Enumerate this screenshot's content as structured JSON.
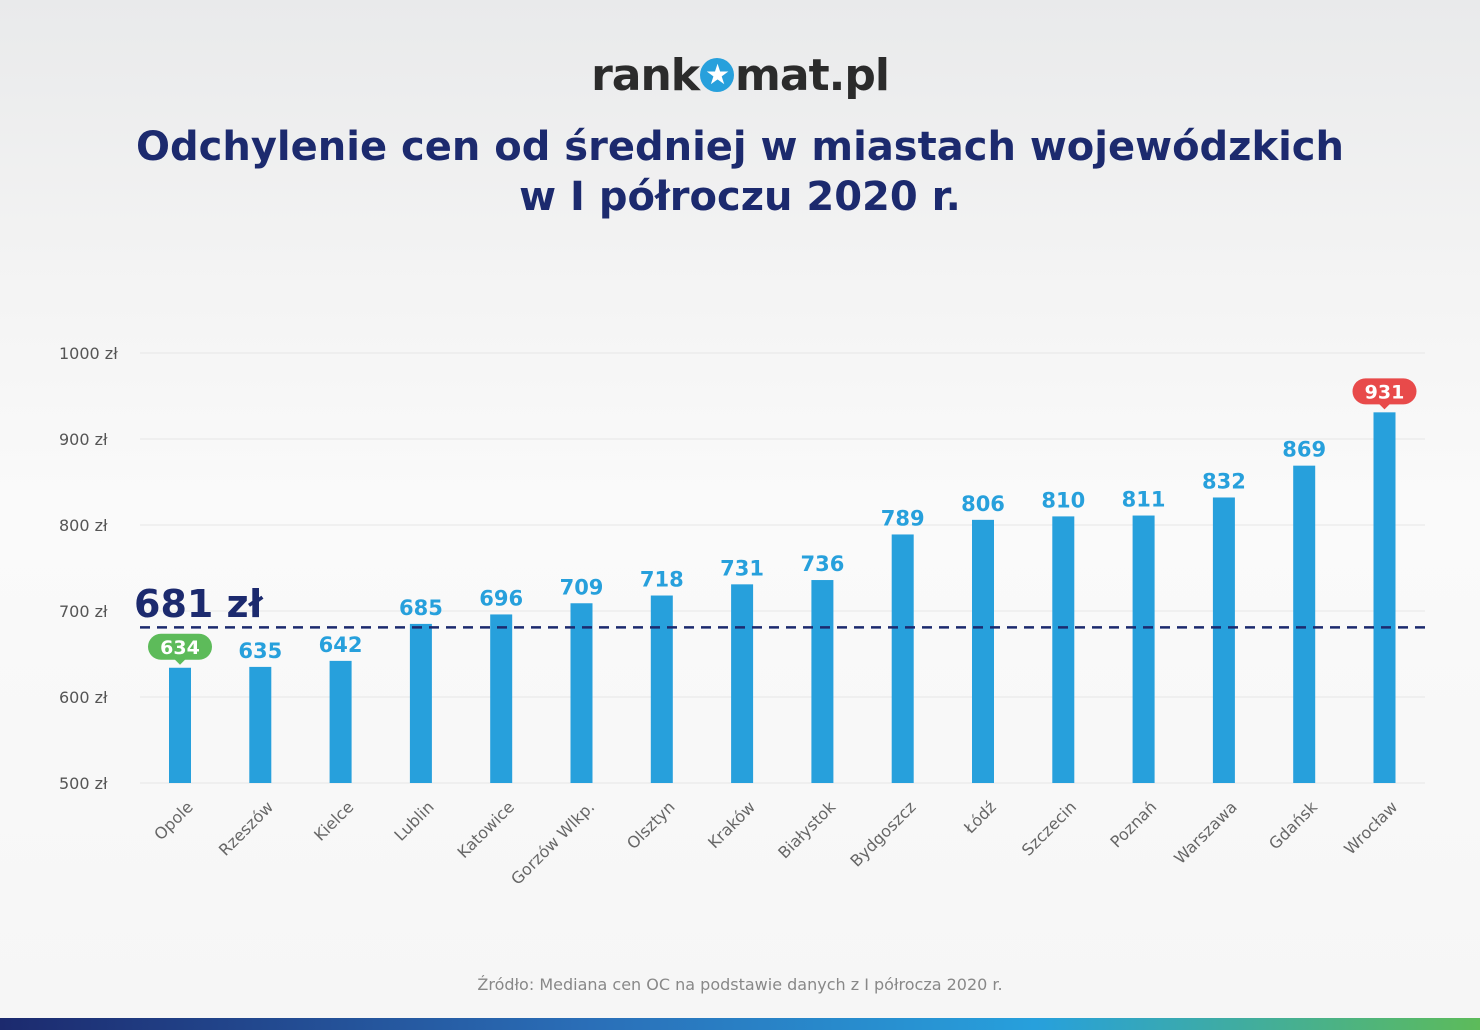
{
  "logo": {
    "text_left": "rank",
    "text_right": "mat.pl",
    "icon": "star-circle-icon"
  },
  "title": {
    "line1": "Odchylenie cen od średniej w miastach wojewódzkich",
    "line2": "w I półroczu 2020 r."
  },
  "source": "Źródło: Mediana cen OC na podstawie danych z I półrocza 2020 r.",
  "chart_data": {
    "type": "bar",
    "categories": [
      "Opole",
      "Rzeszów",
      "Kielce",
      "Lublin",
      "Katowice",
      "Gorzów Wlkp.",
      "Olsztyn",
      "Kraków",
      "Białystok",
      "Bydgoszcz",
      "Łódź",
      "Szczecin",
      "Poznań",
      "Warszawa",
      "Gdańsk",
      "Wrocław"
    ],
    "values": [
      634,
      635,
      642,
      685,
      696,
      709,
      718,
      731,
      736,
      789,
      806,
      810,
      811,
      832,
      869,
      931
    ],
    "ylim": [
      500,
      1000
    ],
    "yticks": [
      500,
      600,
      700,
      800,
      900,
      1000
    ],
    "ytick_labels": [
      "500 zł",
      "600 zł",
      "700 zł",
      "800 zł",
      "900 zł",
      "1000 zł"
    ],
    "average": {
      "value": 681,
      "label": "681 zł"
    },
    "grid": true,
    "colors": {
      "bar": "#27a0dc",
      "min_badge": "#5dbb5a",
      "max_badge": "#e84a4a",
      "average_line": "#1c2a6e"
    }
  }
}
